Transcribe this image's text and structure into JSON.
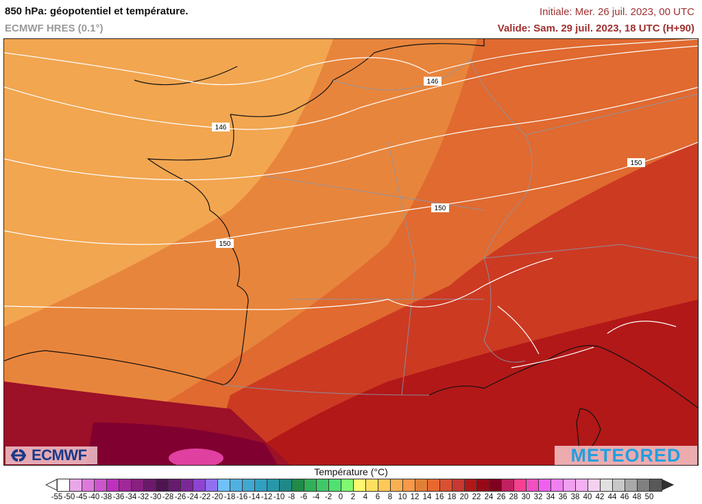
{
  "header": {
    "title": "850 hPa: géopotentiel et température.",
    "model": "ECMWF HRES (0.1°)",
    "initial": "Initiale: Mer. 26 juil. 2023, 00 UTC",
    "valid": "Valide: Sam. 29 juil. 2023, 18 UTC (H+90)"
  },
  "map": {
    "contour_labels": [
      "146",
      "146",
      "150",
      "150",
      "150"
    ],
    "zone_colors": {
      "northwest": "#f2a650",
      "center": "#e8853c",
      "east": "#e06a30",
      "southeast": "#cc3a22",
      "mediterranean": "#b21818",
      "spain": "#9c1028",
      "hot_spot": "#e040a0"
    }
  },
  "logos": {
    "left": "ECMWF",
    "right": "METEORED"
  },
  "colorbar": {
    "title": "Température (°C)",
    "labels": [
      "-55",
      "-50",
      "-45",
      "-40",
      "-38",
      "-36",
      "-34",
      "-32",
      "-30",
      "-28",
      "-26",
      "-24",
      "-22",
      "-20",
      "-18",
      "-16",
      "-14",
      "-12",
      "-10",
      "-8",
      "-6",
      "-4",
      "-2",
      "0",
      "2",
      "4",
      "6",
      "8",
      "10",
      "12",
      "14",
      "16",
      "18",
      "20",
      "22",
      "24",
      "26",
      "28",
      "30",
      "32",
      "34",
      "36",
      "38",
      "40",
      "42",
      "44",
      "46",
      "48",
      "50"
    ],
    "colors": [
      "#ffffff",
      "#e8a8e8",
      "#dc7adc",
      "#cc55cc",
      "#c030c0",
      "#a02898",
      "#882080",
      "#6a1a68",
      "#4e1450",
      "#661a70",
      "#7a2898",
      "#8c44d0",
      "#9070f0",
      "#70c0f8",
      "#50b0e0",
      "#40a8d0",
      "#30a0c0",
      "#2898a8",
      "#208888",
      "#208a48",
      "#30b058",
      "#40c868",
      "#50e070",
      "#80f870",
      "#fff870",
      "#ffe060",
      "#ffc858",
      "#f8b050",
      "#f89848",
      "#e08038",
      "#e86830",
      "#d85030",
      "#c83830",
      "#b01818",
      "#980818",
      "#800020",
      "#c02060",
      "#f84090",
      "#f050c0",
      "#f060f0",
      "#f080f0",
      "#f0a0f0",
      "#f4b0f0",
      "#f4d0f0",
      "#e0e0e0",
      "#c8c8c8",
      "#a8a8a8",
      "#808080",
      "#585858"
    ],
    "arrow_low": "#ffffff",
    "arrow_high": "#303030"
  }
}
